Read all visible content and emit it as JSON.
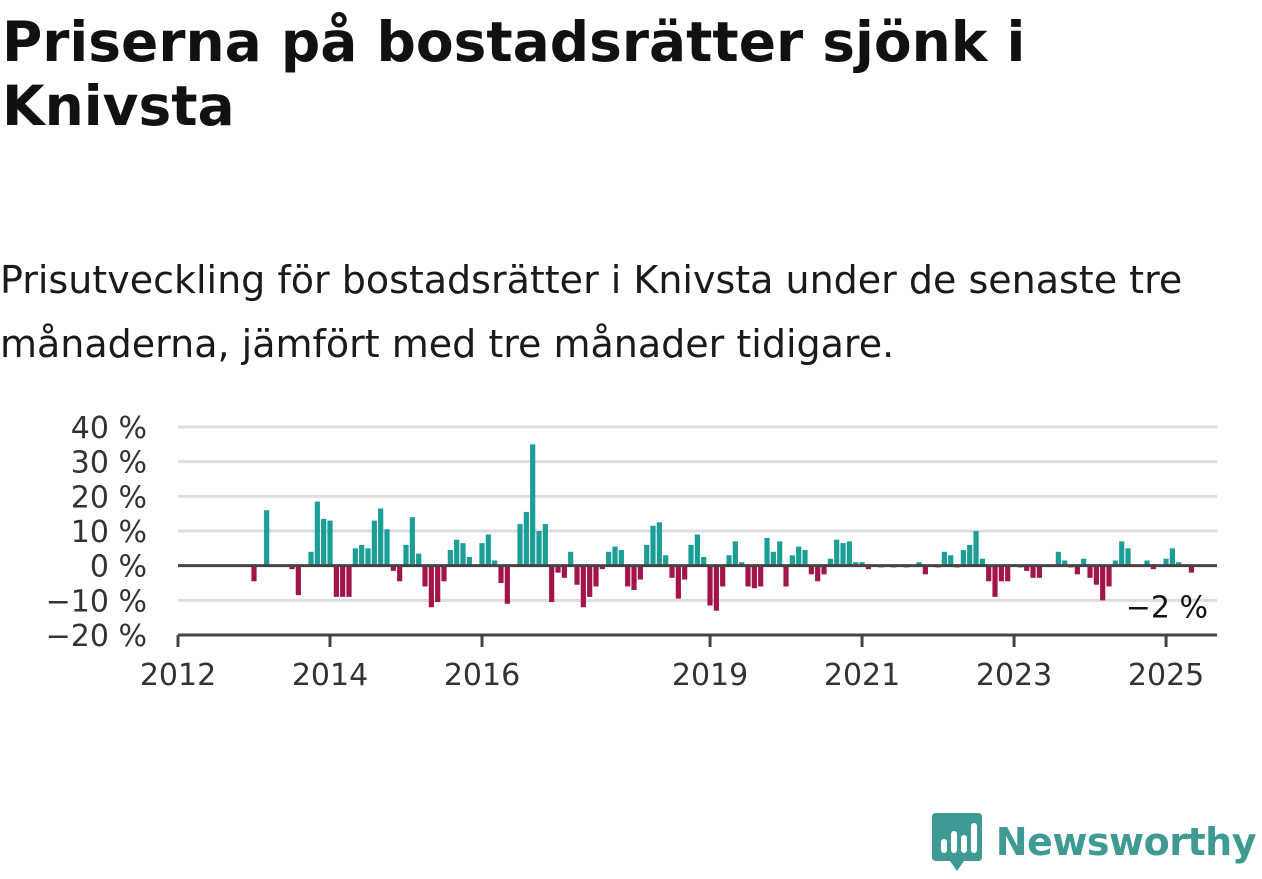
{
  "header": {
    "title": "Priserna på bostadsrätter sjönk i Knivsta",
    "subtitle": "Prisutveckling för bostadsrätter i Knivsta under de senaste tre månaderna, jämfört med tre månader tidigare."
  },
  "brand": {
    "name": "Newsworthy",
    "icon": "chart-bubble-icon",
    "color": "#3f9a94"
  },
  "chart_data": {
    "type": "bar",
    "title": "Priserna på bostadsrätter sjönk i Knivsta",
    "subtitle": "Prisutveckling för bostadsrätter i Knivsta under de senaste tre månaderna, jämfört med tre månader tidigare.",
    "xlabel": "",
    "ylabel": "",
    "x_range": [
      2012.0,
      2025.67
    ],
    "ylim": [
      -20,
      40
    ],
    "y_ticks": [
      40,
      30,
      20,
      10,
      0,
      -10,
      -20
    ],
    "y_tick_labels": [
      "40 %",
      "30 %",
      "20 %",
      "10 %",
      "0 %",
      "−10 %",
      "−20 %"
    ],
    "x_ticks": [
      2012,
      2014,
      2016,
      2019,
      2021,
      2023,
      2025
    ],
    "x_tick_labels": [
      "2012",
      "2014",
      "2016",
      "2019",
      "2021",
      "2023",
      "2025"
    ],
    "grid": true,
    "colors": {
      "positive": "#1a9e96",
      "negative": "#a3154a",
      "grid": "#dddddd",
      "axis": "#444444"
    },
    "annotation": {
      "text": "−2 %",
      "x": 2024.92,
      "y": -2
    },
    "series": [
      {
        "start": 2012.0,
        "step": 0.08333,
        "values": [
          null,
          null,
          null,
          null,
          null,
          null,
          null,
          null,
          null,
          null,
          null,
          null,
          -4.5,
          null,
          16.0,
          null,
          null,
          null,
          -1.0,
          -8.5,
          null,
          4.0,
          18.5,
          13.5,
          13.0,
          -9.0,
          -9.0,
          -9.0,
          5.0,
          6.0,
          5.0,
          13.0,
          16.5,
          10.5,
          -1.5,
          -4.5,
          6.0,
          14.0,
          3.5,
          -6.0,
          -12.0,
          -10.5,
          -4.5,
          4.5,
          7.5,
          6.5,
          2.5,
          null,
          6.5,
          9.0,
          1.5,
          -5.0,
          -11.0,
          null,
          12.0,
          15.5,
          35.0,
          10.0,
          12.0,
          -10.5,
          -2.0,
          -3.5,
          4.0,
          -5.5,
          -12.0,
          -9.0,
          -6.0,
          -1.0,
          4.0,
          5.5,
          4.5,
          -6.0,
          -7.0,
          -4.0,
          6.0,
          11.5,
          12.5,
          3.0,
          -3.5,
          -9.5,
          -4.0,
          6.0,
          9.0,
          2.5,
          -11.5,
          -13.0,
          -6.0,
          3.0,
          7.0,
          1.0,
          -6.0,
          -6.5,
          -6.0,
          8.0,
          4.0,
          7.0,
          -6.0,
          3.0,
          5.5,
          4.5,
          -2.5,
          -4.5,
          -2.5,
          2.0,
          7.5,
          6.5,
          7.0,
          1.0,
          1.0,
          -1.0,
          null,
          -0.5,
          null,
          -0.5,
          null,
          -0.5,
          null,
          1.0,
          -2.5,
          null,
          -0.5,
          4.0,
          3.0,
          -0.5,
          4.5,
          6.0,
          10.0,
          2.0,
          -4.5,
          -9.0,
          -4.5,
          -4.5,
          null,
          -0.5,
          -1.5,
          -3.5,
          -3.5,
          null,
          null,
          4.0,
          1.5,
          -0.5,
          -2.5,
          2.0,
          -3.5,
          -5.5,
          -10.0,
          -6.0,
          1.5,
          7.0,
          5.0,
          null,
          null,
          1.5,
          -1.0,
          null,
          2.0,
          5.0,
          1.0,
          null,
          -2.0,
          null,
          null
        ]
      }
    ]
  }
}
